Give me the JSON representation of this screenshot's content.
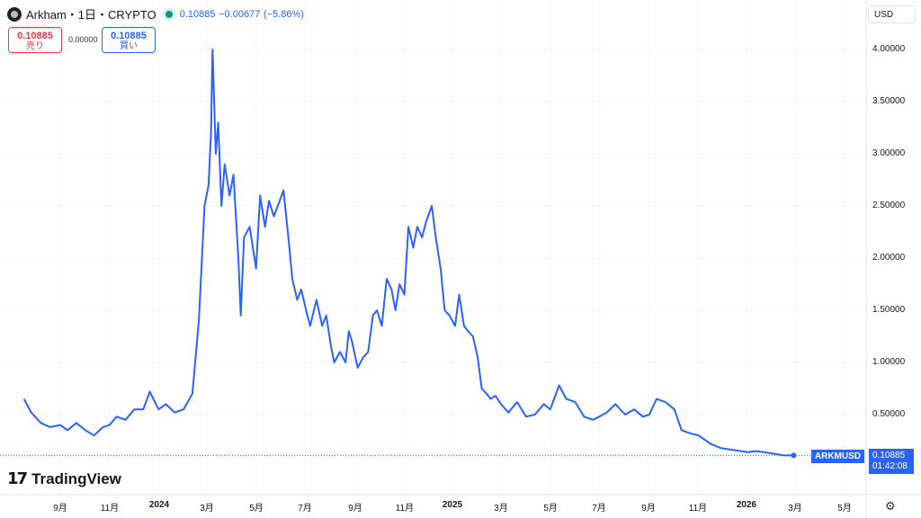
{
  "header": {
    "symbol": "Arkham・1日・CRYPTO",
    "last": "0.10885",
    "change": "−0.00677",
    "change_pct": "(−5.86%)",
    "market_status_color": "#089981"
  },
  "trade": {
    "sell_price": "0.10885",
    "sell_label": "売り",
    "spread": "0.00000",
    "buy_price": "0.10885",
    "buy_label": "買い"
  },
  "currency": "USD",
  "branding": "TradingView",
  "price_label": {
    "symbol": "ARKMUSD",
    "price": "0.10885",
    "countdown": "01:42:08"
  },
  "chart_data": {
    "type": "line",
    "title": "",
    "xlabel": "",
    "ylabel": "",
    "grid": true,
    "line_color": "#2962ff",
    "ylim": [
      0,
      4.2
    ],
    "yticks": [
      "4.00000",
      "3.50000",
      "3.00000",
      "2.50000",
      "2.00000",
      "1.50000",
      "1.00000",
      "0.50000"
    ],
    "xticks": [
      "9月",
      "11月",
      "2024",
      "3月",
      "5月",
      "7月",
      "9月",
      "11月",
      "2025",
      "3月",
      "5月",
      "7月",
      "9月",
      "11月",
      "2026",
      "3月",
      "5月"
    ],
    "series": [
      {
        "points": [
          [
            "2023-07-18",
            0.65
          ],
          [
            "2023-07-27",
            0.52
          ],
          [
            "2023-08-08",
            0.42
          ],
          [
            "2023-08-19",
            0.38
          ],
          [
            "2023-09-01",
            0.4
          ],
          [
            "2023-09-10",
            0.35
          ],
          [
            "2023-09-21",
            0.42
          ],
          [
            "2023-10-02",
            0.35
          ],
          [
            "2023-10-13",
            0.3
          ],
          [
            "2023-10-24",
            0.38
          ],
          [
            "2023-11-01",
            0.4
          ],
          [
            "2023-11-10",
            0.48
          ],
          [
            "2023-11-21",
            0.45
          ],
          [
            "2023-12-02",
            0.55
          ],
          [
            "2023-12-13",
            0.55
          ],
          [
            "2023-12-21",
            0.72
          ],
          [
            "2024-01-01",
            0.55
          ],
          [
            "2024-01-10",
            0.6
          ],
          [
            "2024-01-21",
            0.52
          ],
          [
            "2024-02-01",
            0.55
          ],
          [
            "2024-02-12",
            0.7
          ],
          [
            "2024-02-20",
            1.4
          ],
          [
            "2024-02-27",
            2.5
          ],
          [
            "2024-03-03",
            2.7
          ],
          [
            "2024-03-06",
            3.2
          ],
          [
            "2024-03-08",
            4.0
          ],
          [
            "2024-03-12",
            3.0
          ],
          [
            "2024-03-15",
            3.3
          ],
          [
            "2024-03-19",
            2.5
          ],
          [
            "2024-03-23",
            2.9
          ],
          [
            "2024-03-29",
            2.6
          ],
          [
            "2024-04-03",
            2.8
          ],
          [
            "2024-04-09",
            2.0
          ],
          [
            "2024-04-12",
            1.45
          ],
          [
            "2024-04-16",
            2.2
          ],
          [
            "2024-04-23",
            2.3
          ],
          [
            "2024-05-01",
            1.9
          ],
          [
            "2024-05-06",
            2.6
          ],
          [
            "2024-05-12",
            2.3
          ],
          [
            "2024-05-17",
            2.55
          ],
          [
            "2024-05-23",
            2.4
          ],
          [
            "2024-05-28",
            2.5
          ],
          [
            "2024-06-04",
            2.65
          ],
          [
            "2024-06-10",
            2.2
          ],
          [
            "2024-06-15",
            1.8
          ],
          [
            "2024-06-21",
            1.6
          ],
          [
            "2024-06-26",
            1.7
          ],
          [
            "2024-07-02",
            1.5
          ],
          [
            "2024-07-07",
            1.35
          ],
          [
            "2024-07-15",
            1.6
          ],
          [
            "2024-07-22",
            1.35
          ],
          [
            "2024-07-27",
            1.45
          ],
          [
            "2024-08-02",
            1.15
          ],
          [
            "2024-08-06",
            1.0
          ],
          [
            "2024-08-13",
            1.1
          ],
          [
            "2024-08-20",
            1.0
          ],
          [
            "2024-08-24",
            1.3
          ],
          [
            "2024-08-28",
            1.2
          ],
          [
            "2024-09-04",
            0.95
          ],
          [
            "2024-09-11",
            1.05
          ],
          [
            "2024-09-17",
            1.1
          ],
          [
            "2024-09-23",
            1.45
          ],
          [
            "2024-09-28",
            1.5
          ],
          [
            "2024-10-04",
            1.35
          ],
          [
            "2024-10-10",
            1.8
          ],
          [
            "2024-10-16",
            1.7
          ],
          [
            "2024-10-21",
            1.5
          ],
          [
            "2024-10-26",
            1.75
          ],
          [
            "2024-11-01",
            1.65
          ],
          [
            "2024-11-06",
            2.3
          ],
          [
            "2024-11-12",
            2.1
          ],
          [
            "2024-11-17",
            2.3
          ],
          [
            "2024-11-23",
            2.2
          ],
          [
            "2024-11-28",
            2.35
          ],
          [
            "2024-12-05",
            2.5
          ],
          [
            "2024-12-10",
            2.2
          ],
          [
            "2024-12-16",
            1.9
          ],
          [
            "2024-12-21",
            1.5
          ],
          [
            "2024-12-27",
            1.45
          ],
          [
            "2025-01-03",
            1.35
          ],
          [
            "2025-01-08",
            1.65
          ],
          [
            "2025-01-14",
            1.35
          ],
          [
            "2025-01-19",
            1.3
          ],
          [
            "2025-01-25",
            1.25
          ],
          [
            "2025-01-31",
            1.05
          ],
          [
            "2025-02-05",
            0.75
          ],
          [
            "2025-02-11",
            0.7
          ],
          [
            "2025-02-16",
            0.65
          ],
          [
            "2025-02-22",
            0.68
          ],
          [
            "2025-03-01",
            0.6
          ],
          [
            "2025-03-10",
            0.52
          ],
          [
            "2025-03-21",
            0.62
          ],
          [
            "2025-04-01",
            0.48
          ],
          [
            "2025-04-12",
            0.5
          ],
          [
            "2025-04-23",
            0.6
          ],
          [
            "2025-05-01",
            0.55
          ],
          [
            "2025-05-12",
            0.78
          ],
          [
            "2025-05-21",
            0.65
          ],
          [
            "2025-06-01",
            0.62
          ],
          [
            "2025-06-12",
            0.48
          ],
          [
            "2025-06-23",
            0.45
          ],
          [
            "2025-07-01",
            0.48
          ],
          [
            "2025-07-10",
            0.52
          ],
          [
            "2025-07-21",
            0.6
          ],
          [
            "2025-08-02",
            0.5
          ],
          [
            "2025-08-13",
            0.55
          ],
          [
            "2025-08-24",
            0.48
          ],
          [
            "2025-09-01",
            0.5
          ],
          [
            "2025-09-10",
            0.65
          ],
          [
            "2025-09-21",
            0.62
          ],
          [
            "2025-10-02",
            0.55
          ],
          [
            "2025-10-11",
            0.35
          ],
          [
            "2025-10-22",
            0.32
          ],
          [
            "2025-11-01",
            0.3
          ],
          [
            "2025-11-16",
            0.22
          ],
          [
            "2025-11-28",
            0.18
          ],
          [
            "2025-12-14",
            0.16
          ],
          [
            "2026-01-01",
            0.14
          ],
          [
            "2026-01-12",
            0.15
          ],
          [
            "2026-01-29",
            0.13
          ],
          [
            "2026-02-14",
            0.11
          ],
          [
            "2026-02-27",
            0.10885
          ]
        ]
      }
    ]
  }
}
